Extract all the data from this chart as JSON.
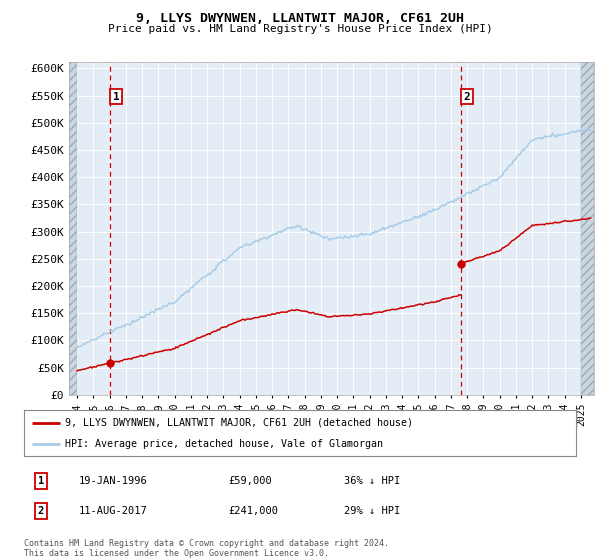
{
  "title": "9, LLYS DWYNWEN, LLANTWIT MAJOR, CF61 2UH",
  "subtitle": "Price paid vs. HM Land Registry's House Price Index (HPI)",
  "legend_line1": "9, LLYS DWYNWEN, LLANTWIT MAJOR, CF61 2UH (detached house)",
  "legend_line2": "HPI: Average price, detached house, Vale of Glamorgan",
  "annotation1_date": "19-JAN-1996",
  "annotation1_price": "£59,000",
  "annotation1_note": "36% ↓ HPI",
  "annotation2_date": "11-AUG-2017",
  "annotation2_price": "£241,000",
  "annotation2_note": "29% ↓ HPI",
  "footnote": "Contains HM Land Registry data © Crown copyright and database right 2024.\nThis data is licensed under the Open Government Licence v3.0.",
  "sale1_year": 1996.05,
  "sale1_price": 59000,
  "sale2_year": 2017.62,
  "sale2_price": 241000,
  "hpi_color": "#a8cce8",
  "property_color": "#cc0000",
  "dashed_line_color": "#cc0000",
  "background_plot": "#e4edf5",
  "background_hatch_color": "#ccd6e0",
  "grid_color": "#ffffff",
  "ylim_min": 0,
  "ylim_max": 612500,
  "yticks": [
    0,
    50000,
    100000,
    150000,
    200000,
    250000,
    300000,
    350000,
    400000,
    450000,
    500000,
    550000,
    600000
  ],
  "xlim_min": 1993.5,
  "xlim_max": 2025.8,
  "hatch_end": 1994.0
}
